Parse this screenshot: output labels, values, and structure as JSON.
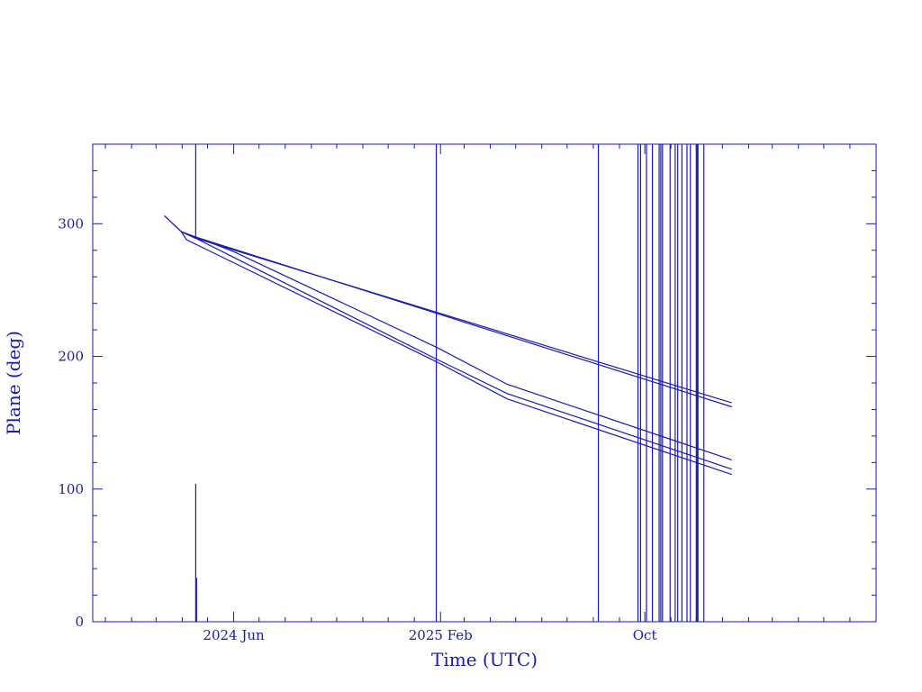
{
  "chart_data": {
    "type": "line",
    "xlabel": "Time (UTC)",
    "ylabel": "Plane (deg)",
    "x_range": [
      "2023-12-17",
      "2026-07-02"
    ],
    "ylim": [
      0,
      360
    ],
    "x_tick_labels": [
      {
        "date": "2024-06-01",
        "label": "2024 Jun"
      },
      {
        "date": "2025-02-01",
        "label": "2025 Feb"
      },
      {
        "date": "2025-10-01",
        "label": "Oct"
      }
    ],
    "y_ticks": [
      0,
      100,
      200,
      300
    ],
    "grid": false,
    "colors": {
      "line": "#1a1ab0",
      "frame": "#1a1ab0",
      "text": "#1a1ab0"
    },
    "series": [
      {
        "points": [
          [
            "2024-03-11",
            306
          ],
          [
            "2024-03-31",
            294
          ],
          [
            "2024-04-17",
            289
          ],
          [
            "2026-01-12",
            165
          ]
        ]
      },
      {
        "points": [
          [
            "2024-03-11",
            306
          ],
          [
            "2024-03-31",
            294
          ],
          [
            "2024-04-17",
            290
          ],
          [
            "2026-01-12",
            162
          ]
        ]
      },
      {
        "points": [
          [
            "2024-03-31",
            294
          ],
          [
            "2024-04-17",
            290
          ],
          [
            "2024-06-01",
            279
          ],
          [
            "2025-01-27",
            207
          ],
          [
            "2025-04-21",
            179
          ],
          [
            "2026-01-12",
            122
          ]
        ]
      },
      {
        "points": [
          [
            "2024-03-31",
            294
          ],
          [
            "2024-04-17",
            289
          ],
          [
            "2025-01-27",
            198
          ],
          [
            "2025-04-21",
            172
          ],
          [
            "2026-01-12",
            115
          ]
        ]
      },
      {
        "points": [
          [
            "2024-03-31",
            294
          ],
          [
            "2024-04-06",
            288
          ],
          [
            "2025-01-27",
            196
          ],
          [
            "2025-04-21",
            168
          ],
          [
            "2026-01-12",
            111
          ]
        ]
      }
    ],
    "vertical_segments": [
      {
        "date": "2024-04-17",
        "y0": 289,
        "y1": 360
      },
      {
        "date": "2024-04-17",
        "y0": 0,
        "y1": 104
      },
      {
        "date": "2024-04-18",
        "y0": 0,
        "y1": 33
      },
      {
        "date": "2025-01-27",
        "y0": 0,
        "y1": 360
      },
      {
        "date": "2025-08-07",
        "y0": 0,
        "y1": 360
      },
      {
        "date": "2025-09-23",
        "y0": 0,
        "y1": 360
      },
      {
        "date": "2025-09-26",
        "y0": 0,
        "y1": 360
      },
      {
        "date": "2025-10-03",
        "y0": 0,
        "y1": 360
      },
      {
        "date": "2025-10-10",
        "y0": 0,
        "y1": 360
      },
      {
        "date": "2025-10-18",
        "y0": 0,
        "y1": 360
      },
      {
        "date": "2025-10-20",
        "y0": 0,
        "y1": 360
      },
      {
        "date": "2025-10-22",
        "y0": 0,
        "y1": 360
      },
      {
        "date": "2025-10-31",
        "y0": 0,
        "y1": 360
      },
      {
        "date": "2025-11-06",
        "y0": 0,
        "y1": 360
      },
      {
        "date": "2025-11-09",
        "y0": 0,
        "y1": 360
      },
      {
        "date": "2025-11-14",
        "y0": 0,
        "y1": 360
      },
      {
        "date": "2025-11-20",
        "y0": 0,
        "y1": 360
      },
      {
        "date": "2025-11-24",
        "y0": 0,
        "y1": 360
      },
      {
        "date": "2025-12-01",
        "y0": 0,
        "y1": 360
      },
      {
        "date": "2025-12-02",
        "y0": 0,
        "y1": 360
      },
      {
        "date": "2025-12-03",
        "y0": 0,
        "y1": 360
      },
      {
        "date": "2025-12-10",
        "y0": 0,
        "y1": 360
      }
    ]
  }
}
